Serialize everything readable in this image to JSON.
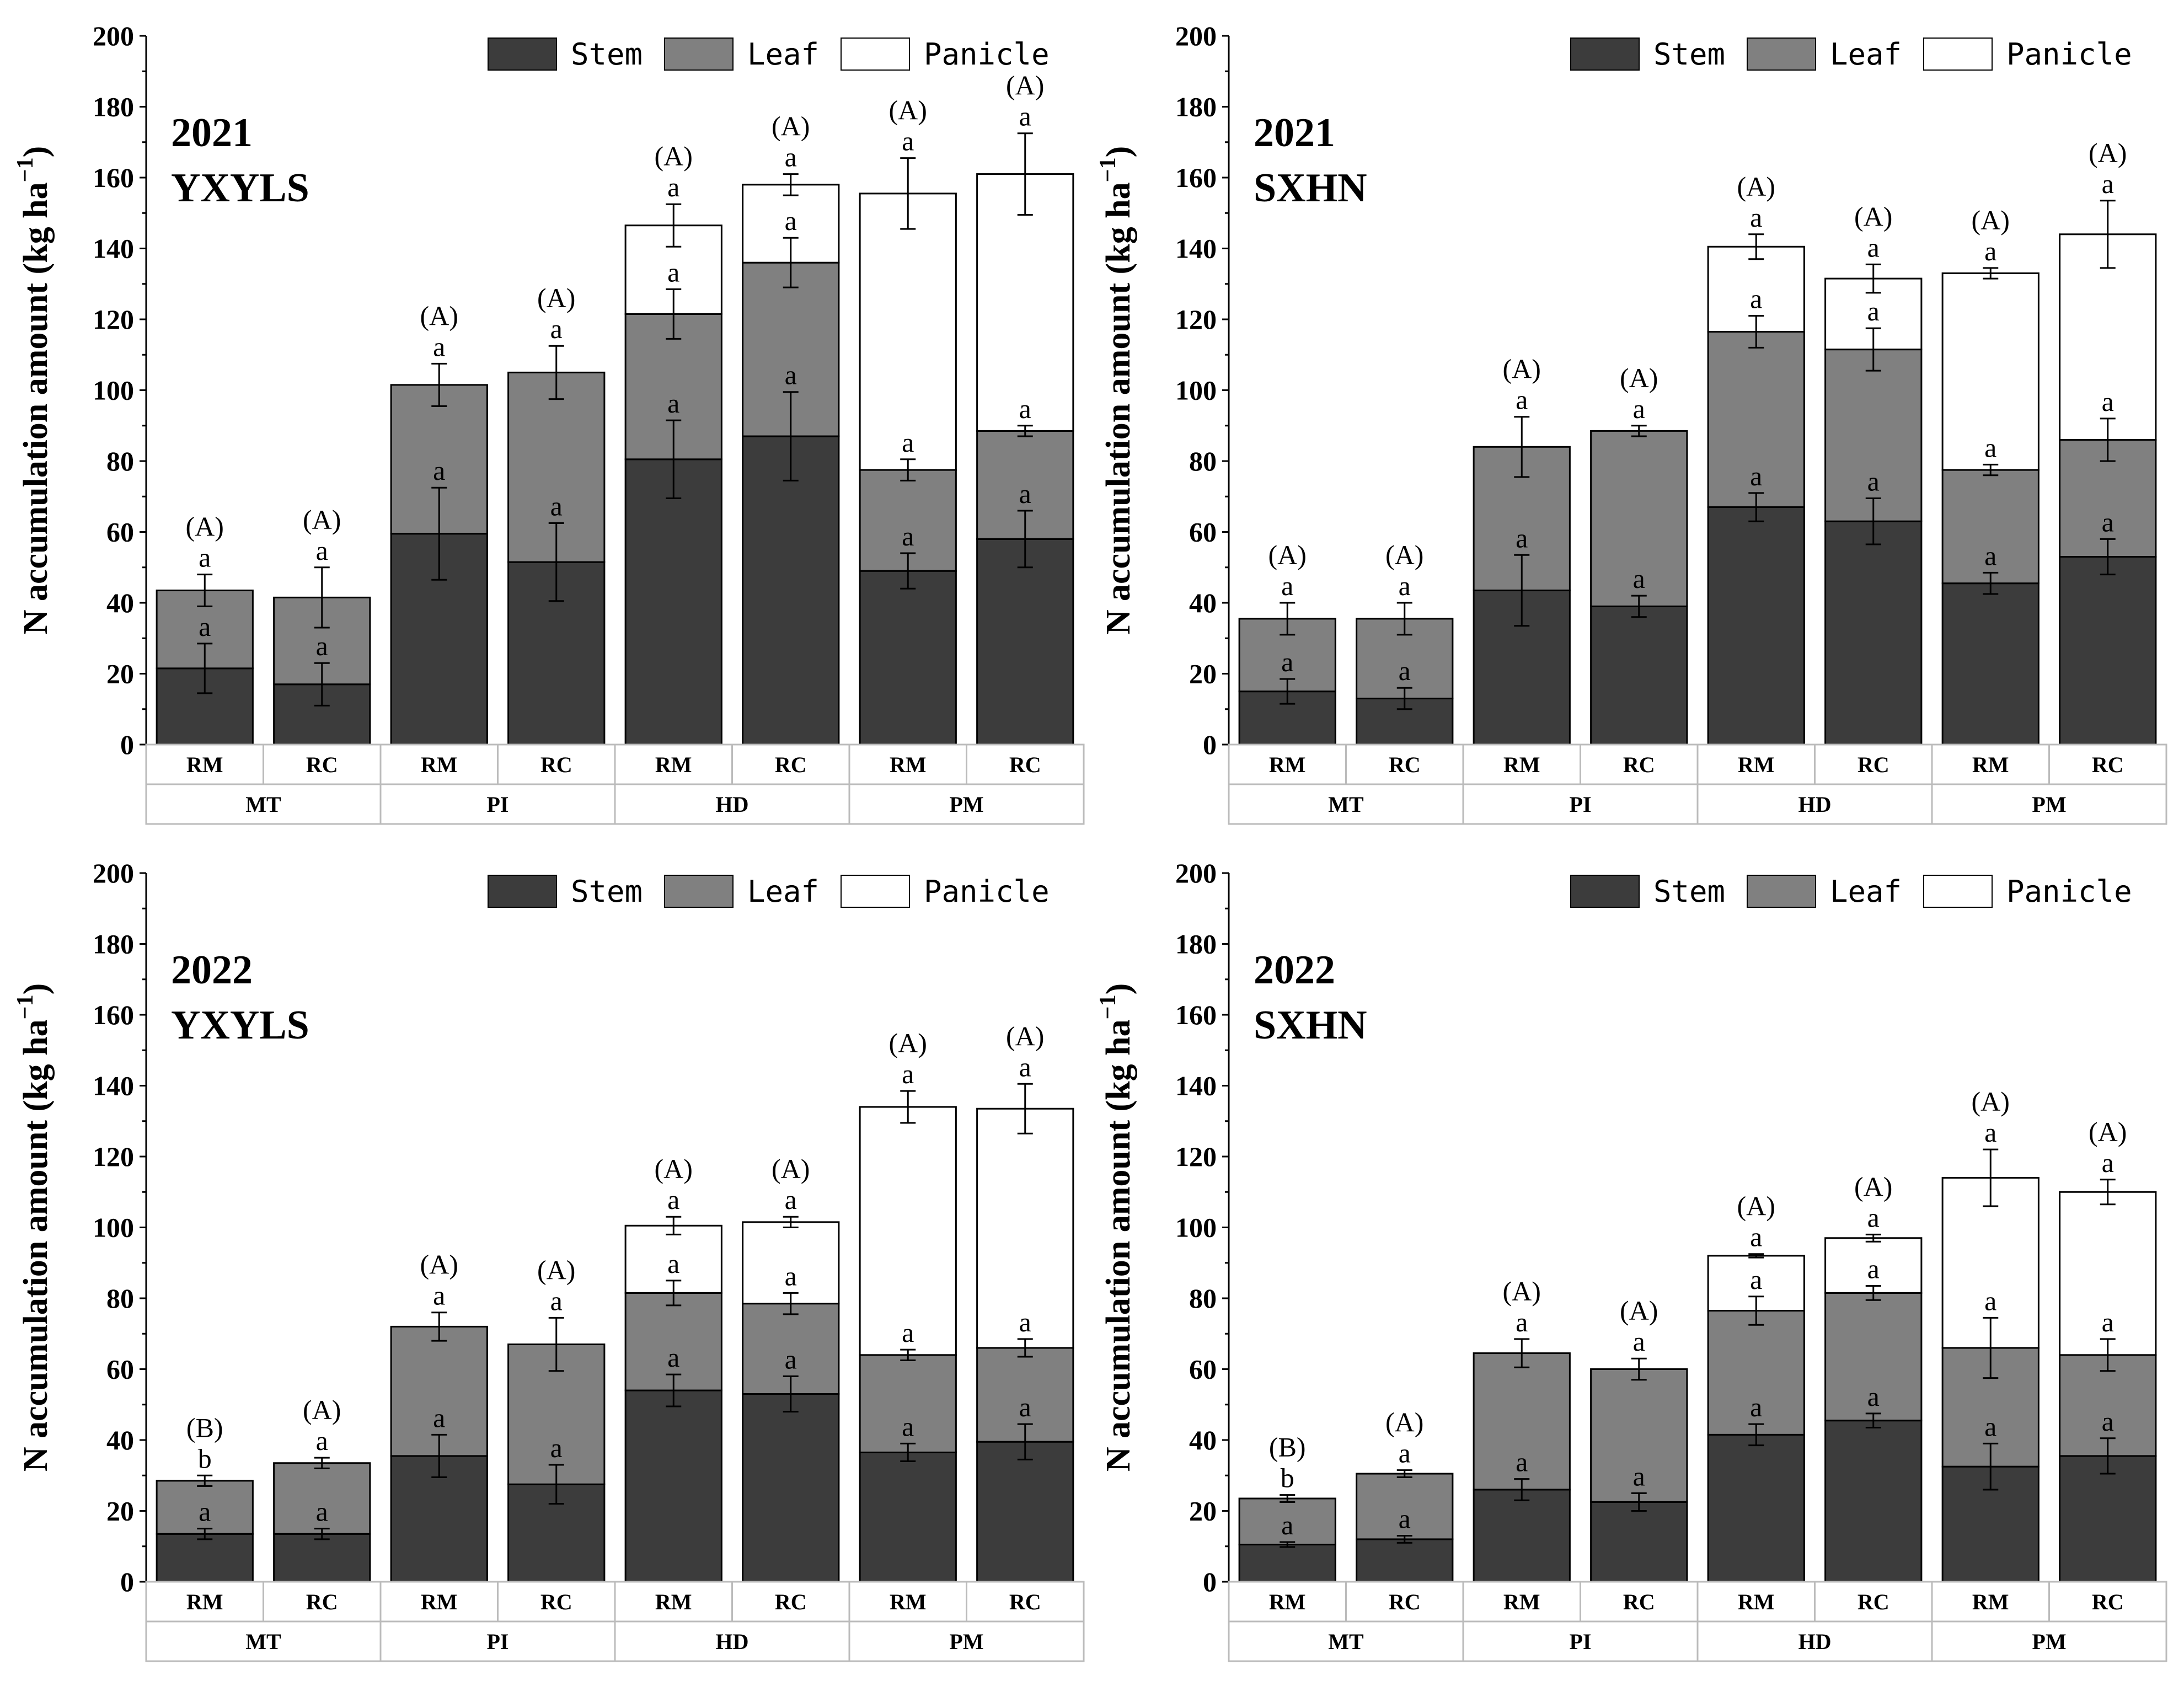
{
  "chart_data": [
    {
      "type": "bar",
      "stacked": true,
      "title": "2021",
      "subtitle": "YXYLS",
      "ylabel": "N accumulation amount (kg ha",
      "ylabel_sup": "−1",
      "ylabel_close": ")",
      "ylim": [
        0,
        200
      ],
      "yticks": [
        "0",
        "20",
        "40",
        "60",
        "80",
        "100",
        "120",
        "140",
        "160",
        "180",
        "200"
      ],
      "legend_position": "top-right",
      "categories": [
        "RM",
        "RC",
        "RM",
        "RC",
        "RM",
        "RC",
        "RM",
        "RC"
      ],
      "groups": [
        "MT",
        "PI",
        "HD",
        "PM"
      ],
      "series": [
        {
          "name": "Stem",
          "color": "#3c3c3c",
          "values": [
            21.5,
            17,
            59.5,
            51.5,
            80.5,
            87,
            49,
            58
          ],
          "errors": [
            7,
            6,
            13,
            11,
            11,
            12.5,
            5,
            8
          ],
          "letters": [
            "a",
            "a",
            "a",
            "a",
            "a",
            "a",
            "a",
            "a"
          ]
        },
        {
          "name": "Leaf",
          "color": "#808080",
          "values": [
            22,
            24.5,
            42,
            53.5,
            41,
            49,
            28.5,
            30.5
          ],
          "errors": [
            4.5,
            8.5,
            6,
            7.5,
            7,
            7,
            3,
            1.5
          ],
          "letters": [
            "a",
            "a",
            "a",
            "a",
            "a",
            "a",
            "a",
            "a"
          ]
        },
        {
          "name": "Panicle",
          "color": "#ffffff",
          "values": [
            0,
            0,
            0,
            0,
            25,
            22,
            78,
            72.5
          ],
          "errors": [
            0,
            0,
            0,
            0,
            6,
            3,
            10,
            11.5
          ],
          "letters": [
            "",
            "",
            "",
            "",
            "a",
            "a",
            "a",
            "a"
          ]
        }
      ],
      "total_letters": [
        "(A)",
        "(A)",
        "(A)",
        "(A)",
        "(A)",
        "(A)",
        "(A)",
        "(A)"
      ]
    },
    {
      "type": "bar",
      "stacked": true,
      "title": "2021",
      "subtitle": "SXHN",
      "ylabel": "N accumulation amount (kg ha",
      "ylabel_sup": "−1",
      "ylabel_close": ")",
      "ylim": [
        0,
        200
      ],
      "yticks": [
        "0",
        "20",
        "40",
        "60",
        "80",
        "100",
        "120",
        "140",
        "160",
        "180",
        "200"
      ],
      "legend_position": "top-right",
      "categories": [
        "RM",
        "RC",
        "RM",
        "RC",
        "RM",
        "RC",
        "RM",
        "RC"
      ],
      "groups": [
        "MT",
        "PI",
        "HD",
        "PM"
      ],
      "series": [
        {
          "name": "Stem",
          "color": "#3c3c3c",
          "values": [
            15,
            13,
            43.5,
            39,
            67,
            63,
            45.5,
            53
          ],
          "errors": [
            3.5,
            3,
            10,
            3,
            4,
            6.5,
            3,
            5
          ],
          "letters": [
            "a",
            "a",
            "a",
            "a",
            "a",
            "a",
            "a",
            "a"
          ]
        },
        {
          "name": "Leaf",
          "color": "#808080",
          "values": [
            20.5,
            22.5,
            40.5,
            49.5,
            49.5,
            48.5,
            32,
            33
          ],
          "errors": [
            4.5,
            4.5,
            8.5,
            1.5,
            4.5,
            6,
            1.5,
            6
          ],
          "letters": [
            "a",
            "a",
            "a",
            "a",
            "a",
            "a",
            "a",
            "a"
          ]
        },
        {
          "name": "Panicle",
          "color": "#ffffff",
          "values": [
            0,
            0,
            0,
            0,
            24,
            20,
            55.5,
            58
          ],
          "errors": [
            0,
            0,
            0,
            0,
            3.5,
            4,
            1.5,
            9.5
          ],
          "letters": [
            "",
            "",
            "",
            "",
            "a",
            "a",
            "a",
            "a"
          ]
        }
      ],
      "total_letters": [
        "(A)",
        "(A)",
        "(A)",
        "(A)",
        "(A)",
        "(A)",
        "(A)",
        "(A)"
      ]
    },
    {
      "type": "bar",
      "stacked": true,
      "title": "2022",
      "subtitle": "YXYLS",
      "ylabel": "N accumulation amount (kg ha",
      "ylabel_sup": "−1",
      "ylabel_close": ")",
      "ylim": [
        0,
        200
      ],
      "yticks": [
        "0",
        "20",
        "40",
        "60",
        "80",
        "100",
        "120",
        "140",
        "160",
        "180",
        "200"
      ],
      "legend_position": "top-right",
      "categories": [
        "RM",
        "RC",
        "RM",
        "RC",
        "RM",
        "RC",
        "RM",
        "RC"
      ],
      "groups": [
        "MT",
        "PI",
        "HD",
        "PM"
      ],
      "series": [
        {
          "name": "Stem",
          "color": "#3c3c3c",
          "values": [
            13.5,
            13.5,
            35.5,
            27.5,
            54,
            53,
            36.5,
            39.5
          ],
          "errors": [
            1.5,
            1.5,
            6,
            5.5,
            4.5,
            5,
            2.5,
            5
          ],
          "letters": [
            "a",
            "a",
            "a",
            "a",
            "a",
            "a",
            "a",
            "a"
          ]
        },
        {
          "name": "Leaf",
          "color": "#808080",
          "values": [
            15,
            20,
            36.5,
            39.5,
            27.5,
            25.5,
            27.5,
            26.5
          ],
          "errors": [
            1.5,
            1.5,
            4,
            7.5,
            3.5,
            3,
            1.5,
            2.5
          ],
          "letters": [
            "b",
            "a",
            "a",
            "a",
            "a",
            "a",
            "a",
            "a"
          ]
        },
        {
          "name": "Panicle",
          "color": "#ffffff",
          "values": [
            0,
            0,
            0,
            0,
            19,
            23,
            70,
            67.5
          ],
          "errors": [
            0,
            0,
            0,
            0,
            2.5,
            1.5,
            4.5,
            7
          ],
          "letters": [
            "",
            "",
            "",
            "",
            "a",
            "a",
            "a",
            "a"
          ]
        }
      ],
      "total_letters": [
        "(B)",
        "(A)",
        "(A)",
        "(A)",
        "(A)",
        "(A)",
        "(A)",
        "(A)"
      ]
    },
    {
      "type": "bar",
      "stacked": true,
      "title": "2022",
      "subtitle": "SXHN",
      "ylabel": "N accumulation amount (kg ha",
      "ylabel_sup": "−1",
      "ylabel_close": ")",
      "ylim": [
        0,
        200
      ],
      "yticks": [
        "0",
        "20",
        "40",
        "60",
        "80",
        "100",
        "120",
        "140",
        "160",
        "180",
        "200"
      ],
      "legend_position": "top-right",
      "categories": [
        "RM",
        "RC",
        "RM",
        "RC",
        "RM",
        "RC",
        "RM",
        "RC"
      ],
      "groups": [
        "MT",
        "PI",
        "HD",
        "PM"
      ],
      "series": [
        {
          "name": "Stem",
          "color": "#3c3c3c",
          "values": [
            10.5,
            12,
            26,
            22.5,
            41.5,
            45.5,
            32.5,
            35.5
          ],
          "errors": [
            0.7,
            1,
            3,
            2.5,
            3,
            2,
            6.5,
            5
          ],
          "letters": [
            "a",
            "a",
            "a",
            "a",
            "a",
            "a",
            "a",
            "a"
          ]
        },
        {
          "name": "Leaf",
          "color": "#808080",
          "values": [
            13,
            18.5,
            38.5,
            37.5,
            35,
            36,
            33.5,
            28.5
          ],
          "errors": [
            1,
            1,
            4,
            3,
            4,
            2,
            8.5,
            4.5
          ],
          "letters": [
            "b",
            "a",
            "a",
            "a",
            "a",
            "a",
            "a",
            "a"
          ]
        },
        {
          "name": "Panicle",
          "color": "#ffffff",
          "values": [
            0,
            0,
            0,
            0,
            15.5,
            15.5,
            48,
            46
          ],
          "errors": [
            0,
            0,
            0,
            0,
            0.5,
            1,
            8,
            3.5
          ],
          "letters": [
            "",
            "",
            "",
            "",
            "a",
            "a",
            "a",
            "a"
          ]
        }
      ],
      "total_letters": [
        "(B)",
        "(A)",
        "(A)",
        "(A)",
        "(A)",
        "(A)",
        "(A)",
        "(A)"
      ]
    }
  ]
}
